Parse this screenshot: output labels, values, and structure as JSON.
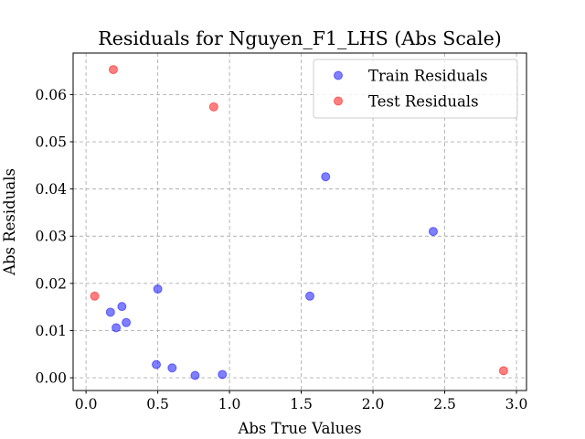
{
  "chart_data": {
    "type": "scatter",
    "title": "Residuals for Nguyen_F1_LHS (Abs Scale)",
    "xlabel": "Abs True Values",
    "ylabel": "Abs Residuals",
    "xlim": [
      -0.09,
      3.07
    ],
    "ylim": [
      -0.0027,
      0.0688
    ],
    "xticks": [
      0.0,
      0.5,
      1.0,
      1.5,
      2.0,
      2.5,
      3.0
    ],
    "xtick_labels": [
      "0.0",
      "0.5",
      "1.0",
      "1.5",
      "2.0",
      "2.5",
      "3.0"
    ],
    "yticks": [
      0.0,
      0.01,
      0.02,
      0.03,
      0.04,
      0.05,
      0.06
    ],
    "ytick_labels": [
      "0.00",
      "0.01",
      "0.02",
      "0.03",
      "0.04",
      "0.05",
      "0.06"
    ],
    "grid": true,
    "legend_position": "top-right",
    "series": [
      {
        "name": "Train Residuals",
        "color": "#0000ff",
        "alpha": 0.5,
        "points": [
          {
            "x": 0.17,
            "y": 0.0139
          },
          {
            "x": 0.21,
            "y": 0.0106
          },
          {
            "x": 0.25,
            "y": 0.0151
          },
          {
            "x": 0.28,
            "y": 0.0117
          },
          {
            "x": 0.49,
            "y": 0.0028
          },
          {
            "x": 0.5,
            "y": 0.0188
          },
          {
            "x": 0.6,
            "y": 0.0021
          },
          {
            "x": 0.76,
            "y": 0.0005
          },
          {
            "x": 0.95,
            "y": 0.0007
          },
          {
            "x": 1.56,
            "y": 0.0173
          },
          {
            "x": 1.67,
            "y": 0.0426
          },
          {
            "x": 2.42,
            "y": 0.031
          }
        ]
      },
      {
        "name": "Test Residuals",
        "color": "#ff0000",
        "alpha": 0.5,
        "points": [
          {
            "x": 0.06,
            "y": 0.0173
          },
          {
            "x": 0.19,
            "y": 0.0653
          },
          {
            "x": 0.89,
            "y": 0.0574
          },
          {
            "x": 2.91,
            "y": 0.0015
          }
        ]
      }
    ]
  }
}
